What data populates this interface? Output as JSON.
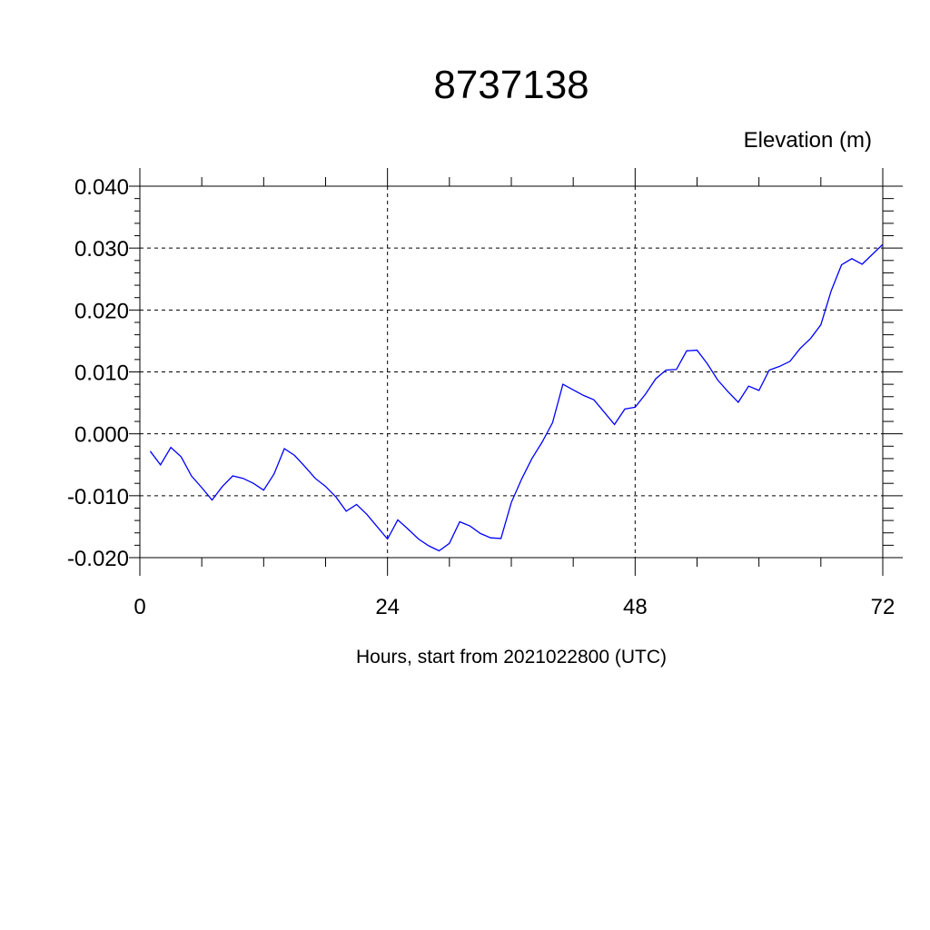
{
  "chart_data": {
    "type": "line",
    "title": "8737138",
    "subtitle": "Elevation (m)",
    "xlabel": "Hours, start from 2021022800 (UTC)",
    "ylabel": "",
    "xlim": [
      0,
      72
    ],
    "ylim": [
      -0.02,
      0.04
    ],
    "x_ticks": [
      0,
      24,
      48,
      72
    ],
    "x_tick_labels": [
      "0",
      "24",
      "48",
      "72"
    ],
    "y_ticks": [
      0.04,
      0.03,
      0.02,
      0.01,
      0.0,
      -0.01,
      -0.02
    ],
    "y_tick_labels": [
      "0.040",
      "0.030",
      "0.020",
      "0.010",
      "0.000",
      "-0.010",
      "-0.020"
    ],
    "grid": "dashed at major ticks",
    "series": [
      {
        "color": "#0000ff",
        "x": [
          1,
          2,
          3,
          4,
          5,
          6,
          7,
          8,
          9,
          10,
          11,
          12,
          13,
          14,
          15,
          16,
          17,
          18,
          19,
          20,
          21,
          22,
          23,
          24,
          25,
          26,
          27,
          28,
          29,
          30,
          31,
          32,
          33,
          34,
          35,
          36,
          37,
          38,
          39,
          40,
          41,
          42,
          43,
          44,
          45,
          46,
          47,
          48,
          49,
          50,
          51,
          52,
          53,
          54,
          55,
          56,
          57,
          58,
          59,
          60,
          61,
          62,
          63,
          64,
          65,
          66,
          67,
          68,
          69,
          70,
          71,
          72
        ],
        "y": [
          -0.0028,
          -0.005,
          -0.0022,
          -0.0037,
          -0.0068,
          -0.0087,
          -0.0107,
          -0.0085,
          -0.0068,
          -0.0072,
          -0.008,
          -0.0091,
          -0.0065,
          -0.0024,
          -0.0035,
          -0.0053,
          -0.0072,
          -0.0085,
          -0.0102,
          -0.0125,
          -0.0114,
          -0.013,
          -0.015,
          -0.017,
          -0.0139,
          -0.0154,
          -0.017,
          -0.0181,
          -0.0189,
          -0.0177,
          -0.0142,
          -0.0149,
          -0.0161,
          -0.0168,
          -0.0169,
          -0.0111,
          -0.0073,
          -0.004,
          -0.0013,
          0.0018,
          0.008,
          0.0071,
          0.0062,
          0.0055,
          0.0035,
          0.0015,
          0.004,
          0.0043,
          0.0064,
          0.0089,
          0.0103,
          0.0104,
          0.0134,
          0.0135,
          0.0113,
          0.0087,
          0.0068,
          0.0051,
          0.0077,
          0.007,
          0.0103,
          0.0109,
          0.0117,
          0.0138,
          0.0154,
          0.0176,
          0.0231,
          0.0273,
          0.0283,
          0.0274,
          0.029,
          0.0306
        ]
      }
    ]
  }
}
